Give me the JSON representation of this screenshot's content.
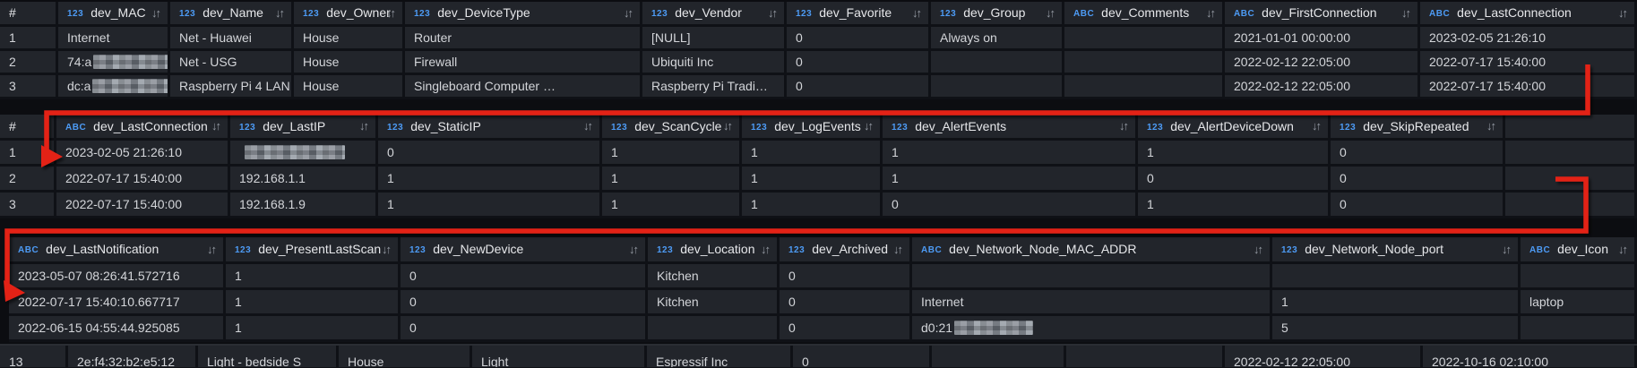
{
  "annotations": {
    "color": "#e32017",
    "arrow1_meaning": "join-continuation-arrow-1",
    "arrow2_meaning": "join-continuation-arrow-2"
  },
  "tables": [
    {
      "name": "devices-main",
      "show_header": true,
      "columns": [
        {
          "badge": "",
          "label": "#",
          "sortable": false
        },
        {
          "badge": "123",
          "label": "dev_MAC",
          "sortable": true
        },
        {
          "badge": "123",
          "label": "dev_Name",
          "sortable": true
        },
        {
          "badge": "123",
          "label": "dev_Owner",
          "sortable": true
        },
        {
          "badge": "123",
          "label": "dev_DeviceType",
          "sortable": true
        },
        {
          "badge": "123",
          "label": "dev_Vendor",
          "sortable": true
        },
        {
          "badge": "123",
          "label": "dev_Favorite",
          "sortable": true
        },
        {
          "badge": "123",
          "label": "dev_Group",
          "sortable": true
        },
        {
          "badge": "ABC",
          "label": "dev_Comments",
          "sortable": true
        },
        {
          "badge": "ABC",
          "label": "dev_FirstConnection",
          "sortable": true
        },
        {
          "badge": "ABC",
          "label": "dev_LastConnection",
          "sortable": true
        }
      ],
      "rows": [
        [
          "1",
          "Internet",
          "Net - Huawei",
          "House",
          "Router",
          "[NULL]",
          "0",
          "Always on",
          "",
          "2021-01-01 00:00:00",
          "2023-02-05 21:26:10"
        ],
        [
          "2",
          {
            "prefix": "74:a",
            "censored": true
          },
          "Net - USG",
          "House",
          "Firewall",
          "Ubiquiti Inc",
          "0",
          "",
          "",
          "2022-02-12 22:05:00",
          "2022-07-17 15:40:00"
        ],
        [
          "3",
          {
            "prefix": "dc:a",
            "censored": true
          },
          "Raspberry Pi 4 LAN",
          "House",
          "Singleboard Computer …",
          "Raspberry Pi Tradi…",
          "0",
          "",
          "",
          "2022-02-12 22:05:00",
          "2022-07-17 15:40:00"
        ]
      ]
    },
    {
      "name": "devices-network-settings",
      "show_header": true,
      "columns": [
        {
          "badge": "",
          "label": "#",
          "sortable": false
        },
        {
          "badge": "ABC",
          "label": "dev_LastConnection",
          "sortable": true
        },
        {
          "badge": "123",
          "label": "dev_LastIP",
          "sortable": true
        },
        {
          "badge": "123",
          "label": "dev_StaticIP",
          "sortable": true
        },
        {
          "badge": "123",
          "label": "dev_ScanCycle",
          "sortable": true
        },
        {
          "badge": "123",
          "label": "dev_LogEvents",
          "sortable": true
        },
        {
          "badge": "123",
          "label": "dev_AlertEvents",
          "sortable": true
        },
        {
          "badge": "123",
          "label": "dev_AlertDeviceDown",
          "sortable": true
        },
        {
          "badge": "123",
          "label": "dev_SkipRepeated",
          "sortable": true
        },
        {
          "badge": "",
          "label": "",
          "sortable": false
        }
      ],
      "rows": [
        [
          "1",
          "2023-02-05 21:26:10",
          {
            "prefix": "",
            "censored": true
          },
          "0",
          "1",
          "1",
          "1",
          "1",
          "0",
          ""
        ],
        [
          "2",
          "2022-07-17 15:40:00",
          "192.168.1.1",
          "1",
          "1",
          "1",
          "1",
          "0",
          "0",
          ""
        ],
        [
          "3",
          "2022-07-17 15:40:00",
          "192.168.1.9",
          "1",
          "1",
          "1",
          "0",
          "1",
          "0",
          ""
        ]
      ]
    },
    {
      "name": "devices-notification-location",
      "show_header": true,
      "columns": [
        {
          "badge": "ABC",
          "label": "dev_LastNotification",
          "sortable": true
        },
        {
          "badge": "123",
          "label": "dev_PresentLastScan",
          "sortable": true
        },
        {
          "badge": "123",
          "label": "dev_NewDevice",
          "sortable": true
        },
        {
          "badge": "123",
          "label": "dev_Location",
          "sortable": true
        },
        {
          "badge": "123",
          "label": "dev_Archived",
          "sortable": true
        },
        {
          "badge": "ABC",
          "label": "dev_Network_Node_MAC_ADDR",
          "sortable": true
        },
        {
          "badge": "123",
          "label": "dev_Network_Node_port",
          "sortable": true
        },
        {
          "badge": "ABC",
          "label": "dev_Icon",
          "sortable": true
        }
      ],
      "rows": [
        [
          "2023-05-07 08:26:41.572716",
          "1",
          "0",
          "Kitchen",
          "0",
          "",
          "",
          ""
        ],
        [
          "2022-07-17 15:40:10.667717",
          "1",
          "0",
          "Kitchen",
          "0",
          "Internet",
          "1",
          "laptop"
        ],
        [
          "2022-06-15 04:55:44.925085",
          "1",
          "0",
          "",
          "0",
          {
            "prefix": "d0:21",
            "censored": true
          },
          "5",
          ""
        ]
      ]
    },
    {
      "name": "devices-main-continued-partial",
      "show_header": false,
      "columns": [],
      "rows": [
        [
          "13",
          "2e:f4:32:b2:e5:12",
          "Light - bedside S",
          "House",
          "Light",
          "Espressif Inc",
          "0",
          "",
          "",
          "2022-02-12 22:05:00",
          "2022-10-16 02:10:00"
        ]
      ]
    }
  ]
}
